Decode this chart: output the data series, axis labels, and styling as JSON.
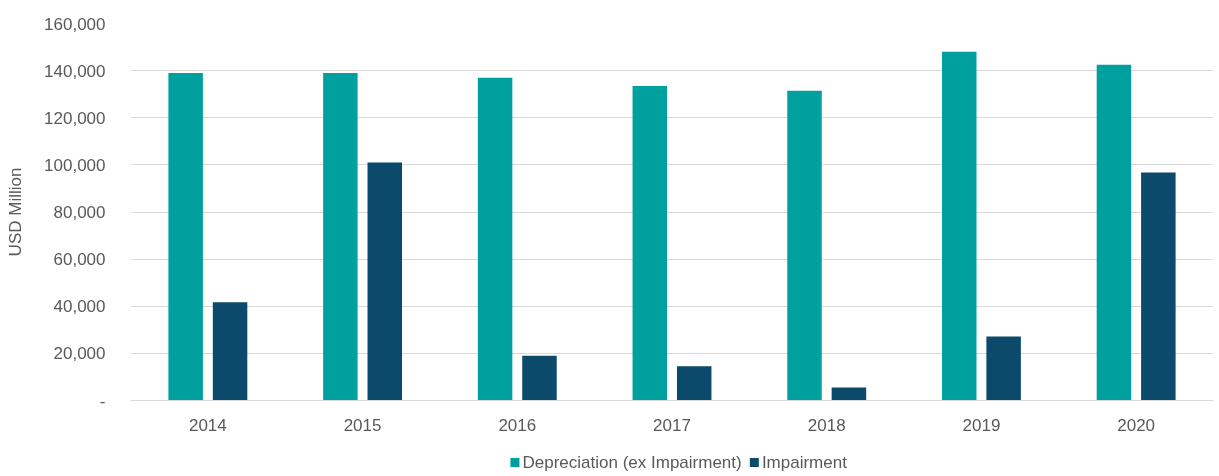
{
  "chart_data": {
    "type": "bar",
    "ylabel": "USD Million",
    "categories": [
      "2014",
      "2015",
      "2016",
      "2017",
      "2018",
      "2019",
      "2020"
    ],
    "series": [
      {
        "name": "Depreciation (ex Impairment)",
        "color": "#00a09f",
        "values": [
          139000,
          139000,
          137000,
          133500,
          131500,
          148000,
          142500
        ]
      },
      {
        "name": "Impairment",
        "color": "#0b4a6b",
        "values": [
          41700,
          101000,
          19000,
          14500,
          5500,
          27200,
          96800
        ]
      }
    ],
    "ylim": [
      0,
      160000
    ],
    "yticks": [
      {
        "value": 0,
        "label": "-"
      },
      {
        "value": 20000,
        "label": "20,000"
      },
      {
        "value": 40000,
        "label": "40,000"
      },
      {
        "value": 60000,
        "label": "60,000"
      },
      {
        "value": 80000,
        "label": "80,000"
      },
      {
        "value": 100000,
        "label": "100,000"
      },
      {
        "value": 120000,
        "label": "120,000"
      },
      {
        "value": 140000,
        "label": "140,000"
      },
      {
        "value": 160000,
        "label": "160,000"
      }
    ],
    "grid": "y",
    "legend": "bottom"
  }
}
